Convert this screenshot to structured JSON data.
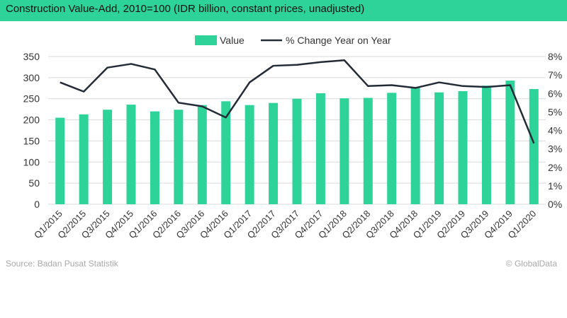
{
  "header": {
    "title": "Construction Value-Add, 2010=100 (IDR billion, constant prices, unadjusted)"
  },
  "footer": {
    "source": "Source: Badan Pusat Statistik",
    "copyright": "© GlobalData"
  },
  "colors": {
    "title_bar": "#2ed39a",
    "bars": "#2ed39a",
    "line": "#222b36",
    "axis_text": "#333333",
    "footer_text": "#a8a8a8"
  },
  "chart_data": {
    "type": "bar",
    "categories": [
      "Q1/2015",
      "Q2/2015",
      "Q3/2015",
      "Q4/2015",
      "Q1/2016",
      "Q2/2016",
      "Q3/2016",
      "Q4/2016",
      "Q1/2017",
      "Q2/2017",
      "Q3/2017",
      "Q4/2017",
      "Q1/2018",
      "Q2/2018",
      "Q3/2018",
      "Q4/2018",
      "Q1/2019",
      "Q2/2019",
      "Q3/2019",
      "Q4/2019",
      "Q1/2020"
    ],
    "series": [
      {
        "name": "Value",
        "type": "bar",
        "axis": "left",
        "values": [
          205,
          213,
          224,
          236,
          220,
          224,
          235,
          244,
          235,
          240,
          250,
          263,
          251,
          252,
          264,
          277,
          265,
          268,
          281,
          293,
          273
        ]
      },
      {
        "name": "% Change Year on Year",
        "type": "line",
        "axis": "right",
        "values": [
          6.6,
          6.1,
          7.4,
          7.6,
          7.3,
          5.5,
          5.3,
          4.7,
          6.6,
          7.5,
          7.55,
          7.7,
          7.8,
          6.4,
          6.45,
          6.3,
          6.6,
          6.4,
          6.35,
          6.45,
          3.3
        ]
      }
    ],
    "left_axis": {
      "ylim": [
        0,
        350
      ],
      "ticks": [
        "0",
        "50",
        "100",
        "150",
        "200",
        "250",
        "300",
        "350"
      ]
    },
    "right_axis": {
      "ylim": [
        0,
        8
      ],
      "ticks": [
        "0%",
        "1%",
        "2%",
        "3%",
        "4%",
        "5%",
        "6%",
        "7%",
        "8%"
      ]
    },
    "legend": {
      "placement": "top-center"
    },
    "grid": true,
    "title": "",
    "xlabel": "",
    "ylabel": ""
  }
}
